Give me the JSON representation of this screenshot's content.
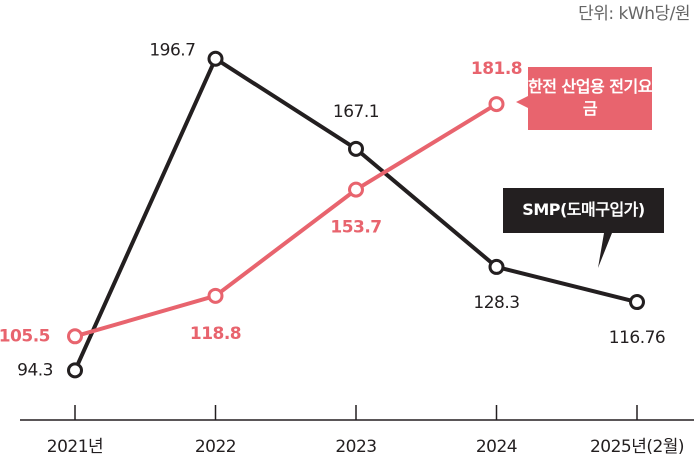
{
  "chart_data": {
    "type": "line",
    "unit": "단위: kWh당/원",
    "categories": [
      "2021년",
      "2022",
      "2023",
      "2024",
      "2025년(2월)"
    ],
    "ylim": [
      78,
      216
    ],
    "series": [
      {
        "name": "SMP(도매구입가)",
        "color": "#231f20",
        "values": [
          94.3,
          196.7,
          167.1,
          128.3,
          116.76
        ]
      },
      {
        "name": "한전 산업용 전기요금",
        "color": "#e8646e",
        "values": [
          105.5,
          118.8,
          153.7,
          181.8,
          null
        ]
      }
    ]
  }
}
